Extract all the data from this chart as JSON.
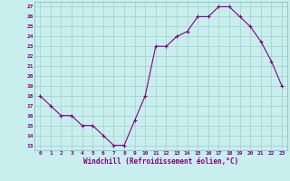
{
  "x": [
    0,
    1,
    2,
    3,
    4,
    5,
    6,
    7,
    8,
    9,
    10,
    11,
    12,
    13,
    14,
    15,
    16,
    17,
    18,
    19,
    20,
    21,
    22,
    23
  ],
  "y": [
    18,
    17,
    16,
    16,
    15,
    15,
    14,
    13,
    13,
    15.5,
    18,
    23,
    23,
    24,
    24.5,
    26,
    26,
    27,
    27,
    26,
    25,
    23.5,
    21.5,
    19
  ],
  "line_color": "#800080",
  "marker": "+",
  "bg_color": "#c8eeed",
  "grid_color": "#9ecfce",
  "xlabel": "Windchill (Refroidissement éolien,°C)",
  "tick_color": "#800080",
  "ylabel_ticks": [
    13,
    14,
    15,
    16,
    17,
    18,
    19,
    20,
    21,
    22,
    23,
    24,
    25,
    26,
    27
  ],
  "xtick_labels": [
    "0",
    "1",
    "2",
    "3",
    "4",
    "5",
    "6",
    "7",
    "8",
    "9",
    "10",
    "11",
    "12",
    "13",
    "14",
    "15",
    "16",
    "17",
    "18",
    "19",
    "20",
    "21",
    "22",
    "23"
  ],
  "ylim": [
    12.5,
    27.5
  ],
  "xlim": [
    -0.5,
    23.5
  ]
}
